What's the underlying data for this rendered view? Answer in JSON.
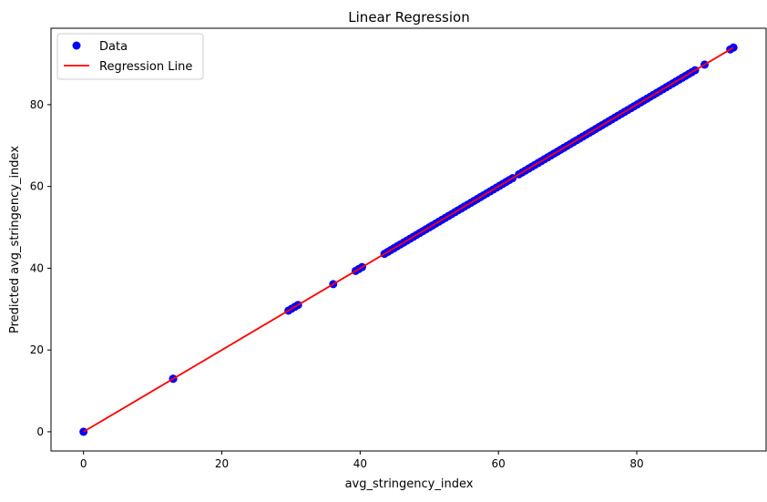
{
  "chart_data": {
    "type": "scatter",
    "title": "Linear Regression",
    "xlabel": "avg_stringency_index",
    "ylabel": "Predicted avg_stringency_index",
    "xlim": [
      -4.7,
      98.7
    ],
    "ylim": [
      -4.7,
      98.7
    ],
    "xticks": [
      0,
      20,
      40,
      60,
      80
    ],
    "yticks": [
      0,
      20,
      40,
      60,
      80
    ],
    "grid": false,
    "legend_position": "upper left",
    "series": [
      {
        "name": "Data",
        "kind": "scatter",
        "color": "#0000ff",
        "x": [
          0,
          12.96,
          12.96,
          29.63,
          30.09,
          30.56,
          31.02,
          36.11,
          39.35,
          39.81,
          40.28,
          43.52,
          44.0,
          44.44,
          44.9,
          45.37,
          45.83,
          46.3,
          46.76,
          47.22,
          47.69,
          48.15,
          48.61,
          49.07,
          49.54,
          50.0,
          50.46,
          50.93,
          51.39,
          51.85,
          52.31,
          52.78,
          53.24,
          53.7,
          54.17,
          54.63,
          55.09,
          55.56,
          56.02,
          56.48,
          56.94,
          57.41,
          57.87,
          58.33,
          58.8,
          59.26,
          59.72,
          60.19,
          60.65,
          61.11,
          61.57,
          62.04,
          62.96,
          63.43,
          63.89,
          64.35,
          64.81,
          65.28,
          65.74,
          66.2,
          66.67,
          67.13,
          67.59,
          68.06,
          68.52,
          68.98,
          69.44,
          69.91,
          70.37,
          70.83,
          71.3,
          71.76,
          72.22,
          72.69,
          73.15,
          73.61,
          74.07,
          74.54,
          75.0,
          75.46,
          75.93,
          76.39,
          76.85,
          77.31,
          77.78,
          78.24,
          78.7,
          79.17,
          79.63,
          80.09,
          80.56,
          81.02,
          81.48,
          81.94,
          82.41,
          82.87,
          83.33,
          83.8,
          84.26,
          84.72,
          85.19,
          85.65,
          86.11,
          86.57,
          87.04,
          87.5,
          87.96,
          88.43,
          89.81,
          93.52,
          93.98
        ],
        "y": [
          0,
          12.96,
          12.96,
          29.63,
          30.09,
          30.56,
          31.02,
          36.11,
          39.35,
          39.81,
          40.28,
          43.52,
          44.0,
          44.44,
          44.9,
          45.37,
          45.83,
          46.3,
          46.76,
          47.22,
          47.69,
          48.15,
          48.61,
          49.07,
          49.54,
          50.0,
          50.46,
          50.93,
          51.39,
          51.85,
          52.31,
          52.78,
          53.24,
          53.7,
          54.17,
          54.63,
          55.09,
          55.56,
          56.02,
          56.48,
          56.94,
          57.41,
          57.87,
          58.33,
          58.8,
          59.26,
          59.72,
          60.19,
          60.65,
          61.11,
          61.57,
          62.04,
          62.96,
          63.43,
          63.89,
          64.35,
          64.81,
          65.28,
          65.74,
          66.2,
          66.67,
          67.13,
          67.59,
          68.06,
          68.52,
          68.98,
          69.44,
          69.91,
          70.37,
          70.83,
          71.3,
          71.76,
          72.22,
          72.69,
          73.15,
          73.61,
          74.07,
          74.54,
          75.0,
          75.46,
          75.93,
          76.39,
          76.85,
          77.31,
          77.78,
          78.24,
          78.7,
          79.17,
          79.63,
          80.09,
          80.56,
          81.02,
          81.48,
          81.94,
          82.41,
          82.87,
          83.33,
          83.8,
          84.26,
          84.72,
          85.19,
          85.65,
          86.11,
          86.57,
          87.04,
          87.5,
          87.96,
          88.43,
          89.81,
          93.52,
          93.98
        ]
      },
      {
        "name": "Regression Line",
        "kind": "line",
        "color": "#ff0000",
        "x": [
          0,
          93.98
        ],
        "y": [
          0,
          93.98
        ]
      }
    ]
  }
}
